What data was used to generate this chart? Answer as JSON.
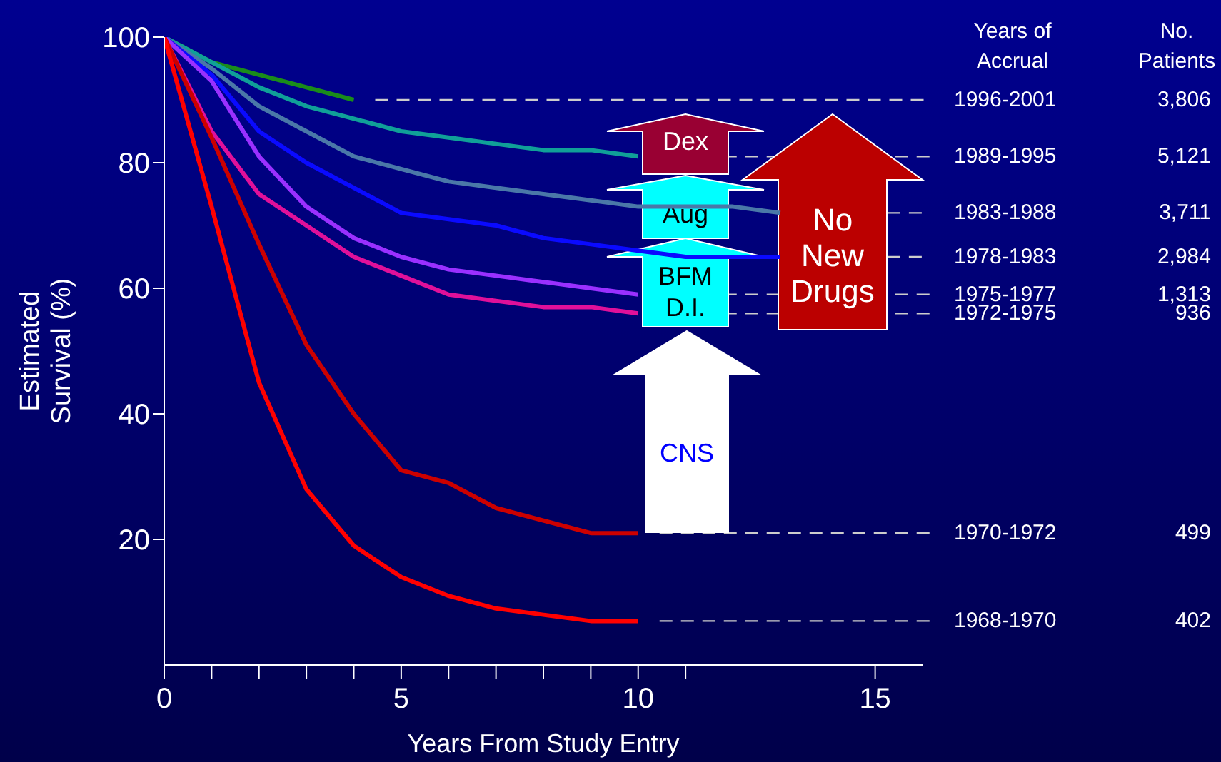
{
  "chart_data": {
    "type": "line",
    "xlabel": "Years From Study Entry",
    "ylabel": "Estimated\nSurvival (%)",
    "x": [
      0,
      1,
      2,
      3,
      4,
      5,
      6,
      7,
      8,
      9,
      10
    ],
    "xlim": [
      0,
      16
    ],
    "xticks": [
      0,
      {
        "value": 1,
        "label": null
      },
      {
        "value": 2,
        "label": null
      },
      {
        "value": 3,
        "label": null
      },
      {
        "value": 4,
        "label": null
      },
      5,
      {
        "value": 6,
        "label": null
      },
      {
        "value": 7,
        "label": null
      },
      {
        "value": 8,
        "label": null
      },
      {
        "value": 9,
        "label": null
      },
      10,
      {
        "value": 11,
        "label": null
      },
      15
    ],
    "ylim": [
      0,
      100
    ],
    "yticks": [
      20,
      40,
      60,
      80,
      100
    ],
    "grid": false,
    "legend": false,
    "marker": "none",
    "line_style": "solid",
    "series": [
      {
        "name": "1996-2001",
        "color": "#1a8c1a",
        "x": [
          0,
          1,
          2,
          3,
          4
        ],
        "values": [
          100,
          96,
          94,
          92,
          90
        ]
      },
      {
        "name": "1989-1995",
        "color": "#10a098",
        "values": [
          100,
          96,
          92,
          89,
          87,
          85,
          84,
          83,
          82,
          82,
          81
        ]
      },
      {
        "name": "1983-1988",
        "color": "#4a78a8",
        "x": [
          0,
          1,
          2,
          3,
          4,
          5,
          6,
          7,
          8,
          9,
          10,
          11,
          12,
          13
        ],
        "values": [
          100,
          95,
          89,
          85,
          81,
          79,
          77,
          76,
          75,
          74,
          73,
          73,
          73,
          72
        ]
      },
      {
        "name": "1978-1983",
        "color": "#0a0aff",
        "x": [
          0,
          1,
          2,
          3,
          4,
          5,
          6,
          7,
          8,
          9,
          10,
          11,
          12,
          13
        ],
        "values": [
          100,
          94,
          85,
          80,
          76,
          72,
          71,
          70,
          68,
          67,
          66,
          65,
          65,
          65
        ]
      },
      {
        "name": "1975-1977",
        "color": "#9a30ff",
        "values": [
          100,
          93,
          81,
          73,
          68,
          65,
          63,
          62,
          61,
          60,
          59
        ]
      },
      {
        "name": "1972-1975",
        "color": "#e0109a",
        "values": [
          100,
          85,
          75,
          70,
          65,
          62,
          59,
          58,
          57,
          57,
          56
        ]
      },
      {
        "name": "1970-1972",
        "color": "#cc0000",
        "values": [
          100,
          84,
          67,
          51,
          40,
          31,
          29,
          25,
          23,
          21,
          21
        ]
      },
      {
        "name": "1968-1970",
        "color": "#ff0000",
        "values": [
          100,
          73,
          45,
          28,
          19,
          14,
          11,
          9,
          8,
          7,
          7
        ]
      }
    ],
    "annotations": [
      "Years of\nAccrual",
      "No.\nPatients",
      "Dex",
      "Aug",
      "BFM\nD.I.",
      "CNS",
      "No\nNew\nDrugs",
      "3,806",
      "5,121",
      "3,711",
      "2,984",
      "1,313",
      "936",
      "499",
      "402"
    ]
  }
}
